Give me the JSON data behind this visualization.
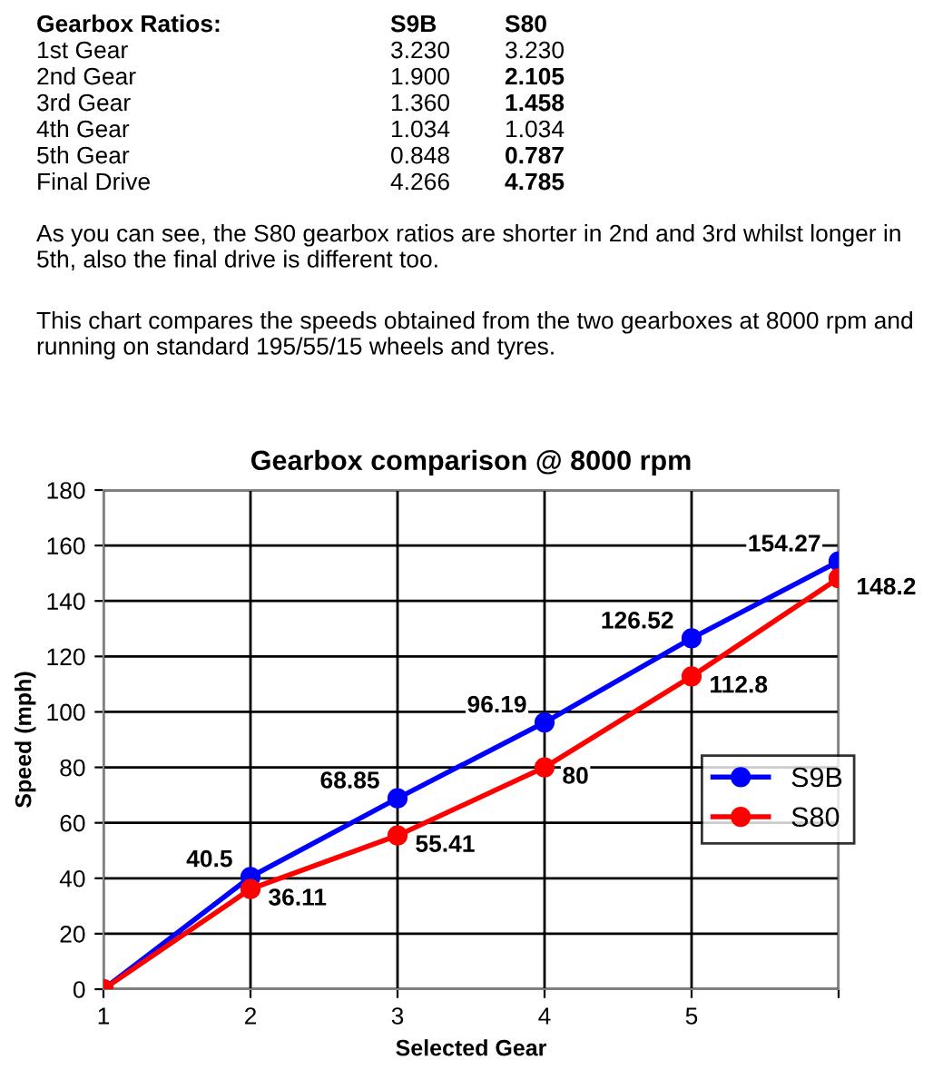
{
  "chart_data": {
    "type": "line",
    "title": "Gearbox comparison @ 8000 rpm",
    "xlabel": "Selected Gear",
    "ylabel": "Speed (mph)",
    "x": [
      1,
      2,
      3,
      4,
      5,
      6
    ],
    "series": [
      {
        "name": "S9B",
        "color": "#0000ff",
        "values": [
          0,
          40.5,
          68.85,
          96.19,
          126.52,
          154.27
        ],
        "value_labels": [
          null,
          "40.5",
          "68.85",
          "96.19",
          "126.52",
          "154.27"
        ]
      },
      {
        "name": "S80",
        "color": "#ff0000",
        "values": [
          0,
          36.11,
          55.41,
          80,
          112.8,
          148.2
        ],
        "value_labels": [
          null,
          "36.11",
          "55.41",
          "80",
          "112.8",
          "148.2"
        ]
      }
    ],
    "xlim": [
      1,
      6
    ],
    "xticks": [
      1,
      2,
      3,
      4,
      5,
      {
        "value": 6,
        "label": null
      }
    ],
    "ylim": [
      0,
      180
    ],
    "yticks": [
      0,
      20,
      40,
      60,
      80,
      100,
      120,
      140,
      160,
      180
    ],
    "grid": true,
    "legend": "right",
    "marker": "circle",
    "line_style": "solid",
    "annotations": [
      "Gearbox Ratios:\tS9B\tS80",
      "1st Gear\t3.230\t3.230",
      "2nd Gear\t1.900\t2.105",
      "3rd Gear\t1.360\t1.458",
      "4th Gear\t1.034\t1.034",
      "5th Gear\t0.848\t0.787",
      "Final Drive\t4.266\t4.785",
      "As you can see, the S80 gearbox ratios are shorter in 2nd and 3rd whilst longer in 5th, also the final drive is different too.",
      "This chart compares the speeds obtained from the two gearboxes at 8000 rpm and running on standard 195/55/15 wheels and tyres."
    ]
  }
}
